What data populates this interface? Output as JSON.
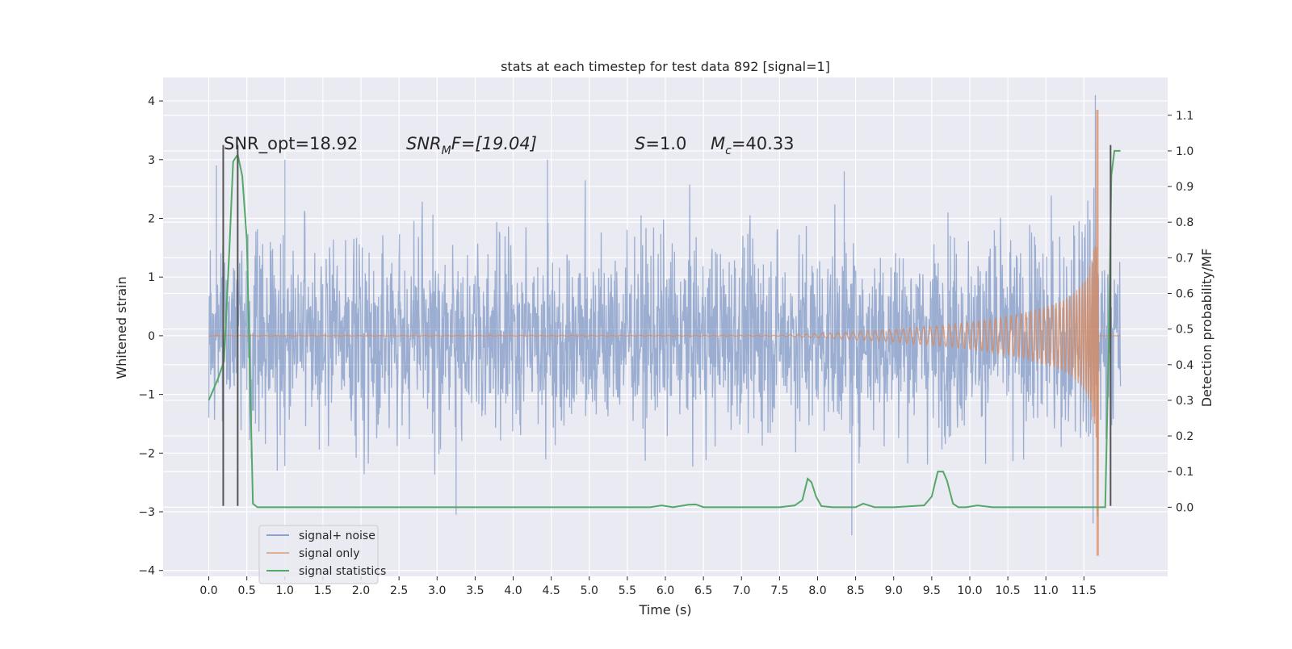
{
  "chart_data": {
    "type": "line",
    "title": "stats at each timestep for test data 892 [signal=1]",
    "xlabel": "Time (s)",
    "ylabel": "Whitened strain",
    "ylabel_right": "Detection probability/MF",
    "xlim": [
      -0.6,
      12.6
    ],
    "ylim": [
      -4.1,
      4.4
    ],
    "ylim_right": [
      -0.194,
      1.206
    ],
    "x_ticks": [
      0.0,
      0.5,
      1.0,
      1.5,
      2.0,
      2.5,
      3.0,
      3.5,
      4.0,
      4.5,
      5.0,
      5.5,
      6.0,
      6.5,
      7.0,
      7.5,
      8.0,
      8.5,
      9.0,
      9.5,
      10.0,
      10.5,
      11.0,
      11.5
    ],
    "x_tick_labels": [
      "0.0",
      "0.5",
      "1.0",
      "1.5",
      "2.0",
      "2.5",
      "3.0",
      "3.5",
      "4.0",
      "4.5",
      "5.0",
      "5.5",
      "6.0",
      "6.5",
      "7.0",
      "7.5",
      "8.0",
      "8.5",
      "9.0",
      "9.5",
      "10.0",
      "10.5",
      "11.0",
      "11.5"
    ],
    "y_ticks": [
      -4,
      -3,
      -2,
      -1,
      0,
      1,
      2,
      3,
      4
    ],
    "y_tick_labels": [
      "−4",
      "−3",
      "−2",
      "−1",
      "0",
      "1",
      "2",
      "3",
      "4"
    ],
    "y_right_ticks": [
      0.0,
      0.1,
      0.2,
      0.3,
      0.4,
      0.5,
      0.6,
      0.7,
      0.8,
      0.9,
      1.0,
      1.1
    ],
    "y_right_tick_labels": [
      "0.0",
      "0.1",
      "0.2",
      "0.3",
      "0.4",
      "0.5",
      "0.6",
      "0.7",
      "0.8",
      "0.9",
      "1.0",
      "1.1"
    ],
    "grid": true,
    "legend_position": "lower-left",
    "annotations": {
      "snr_opt": "SNR_opt=18.92",
      "snr_mf_prefix": "SNR",
      "snr_mf_sub": "M",
      "snr_mf_suffix": "F=[19.04]",
      "s_var": "S",
      "s_value": "=1.0",
      "mc_var": "M",
      "mc_sub": "c",
      "mc_value": "=40.33"
    },
    "series": [
      {
        "name": "signal+ noise",
        "color": "#4c72b0",
        "description": "whitened noisy strain, roughly within ±1.4 with spikes to about ±3",
        "x_range": [
          0.0,
          11.98
        ],
        "typical_amplitude": 1.4,
        "peaks": [
          {
            "x": 0.1,
            "y": 2.9
          },
          {
            "x": 1.0,
            "y": 3.0
          },
          {
            "x": 4.45,
            "y": 3.0
          },
          {
            "x": 8.35,
            "y": 2.8
          },
          {
            "x": 11.65,
            "y": 4.1
          },
          {
            "x": 0.9,
            "y": -2.3
          },
          {
            "x": 3.25,
            "y": -3.05
          },
          {
            "x": 8.45,
            "y": -3.4
          },
          {
            "x": 11.62,
            "y": -3.2
          }
        ]
      },
      {
        "name": "signal only",
        "color": "#dd8452",
        "description": "inspiral chirp, flat near 0, growing after ~8 s, peaking near 11.68 s",
        "merger_time": 11.68,
        "peak_positive": 3.85,
        "peak_negative": -3.75
      },
      {
        "name": "signal statistics",
        "color": "#55a868",
        "axis": "right",
        "x": [
          0.0,
          0.12,
          0.2,
          0.27,
          0.32,
          0.38,
          0.44,
          0.5,
          0.58,
          0.64,
          1.0,
          5.8,
          5.95,
          6.1,
          6.3,
          6.4,
          6.5,
          7.0,
          7.5,
          7.7,
          7.8,
          7.87,
          7.92,
          7.98,
          8.05,
          8.2,
          8.5,
          8.6,
          8.75,
          9.0,
          9.4,
          9.5,
          9.58,
          9.65,
          9.7,
          9.78,
          9.85,
          9.95,
          10.1,
          10.3,
          11.4,
          11.78,
          11.83,
          11.86,
          11.9,
          11.98
        ],
        "y": [
          0.3,
          0.36,
          0.41,
          0.72,
          0.97,
          0.99,
          0.93,
          0.75,
          0.01,
          0.0,
          0.0,
          0.0,
          0.005,
          0.0,
          0.007,
          0.008,
          0.0,
          0.0,
          0.0,
          0.005,
          0.02,
          0.08,
          0.07,
          0.03,
          0.003,
          0.0,
          0.0,
          0.01,
          0.0,
          0.0,
          0.005,
          0.03,
          0.1,
          0.1,
          0.075,
          0.01,
          0.0,
          0.0,
          0.005,
          0.0,
          0.0,
          0.0,
          0.5,
          0.93,
          1.0,
          1.0
        ]
      }
    ],
    "vertical_markers": [
      {
        "x": 0.19,
        "y_range": [
          -2.9,
          3.25
        ],
        "color": "#555555"
      },
      {
        "x": 0.38,
        "y_range": [
          -2.9,
          3.25
        ],
        "color": "#555555"
      },
      {
        "x": 11.85,
        "y_range": [
          -2.9,
          3.25
        ],
        "color": "#555555"
      }
    ]
  }
}
